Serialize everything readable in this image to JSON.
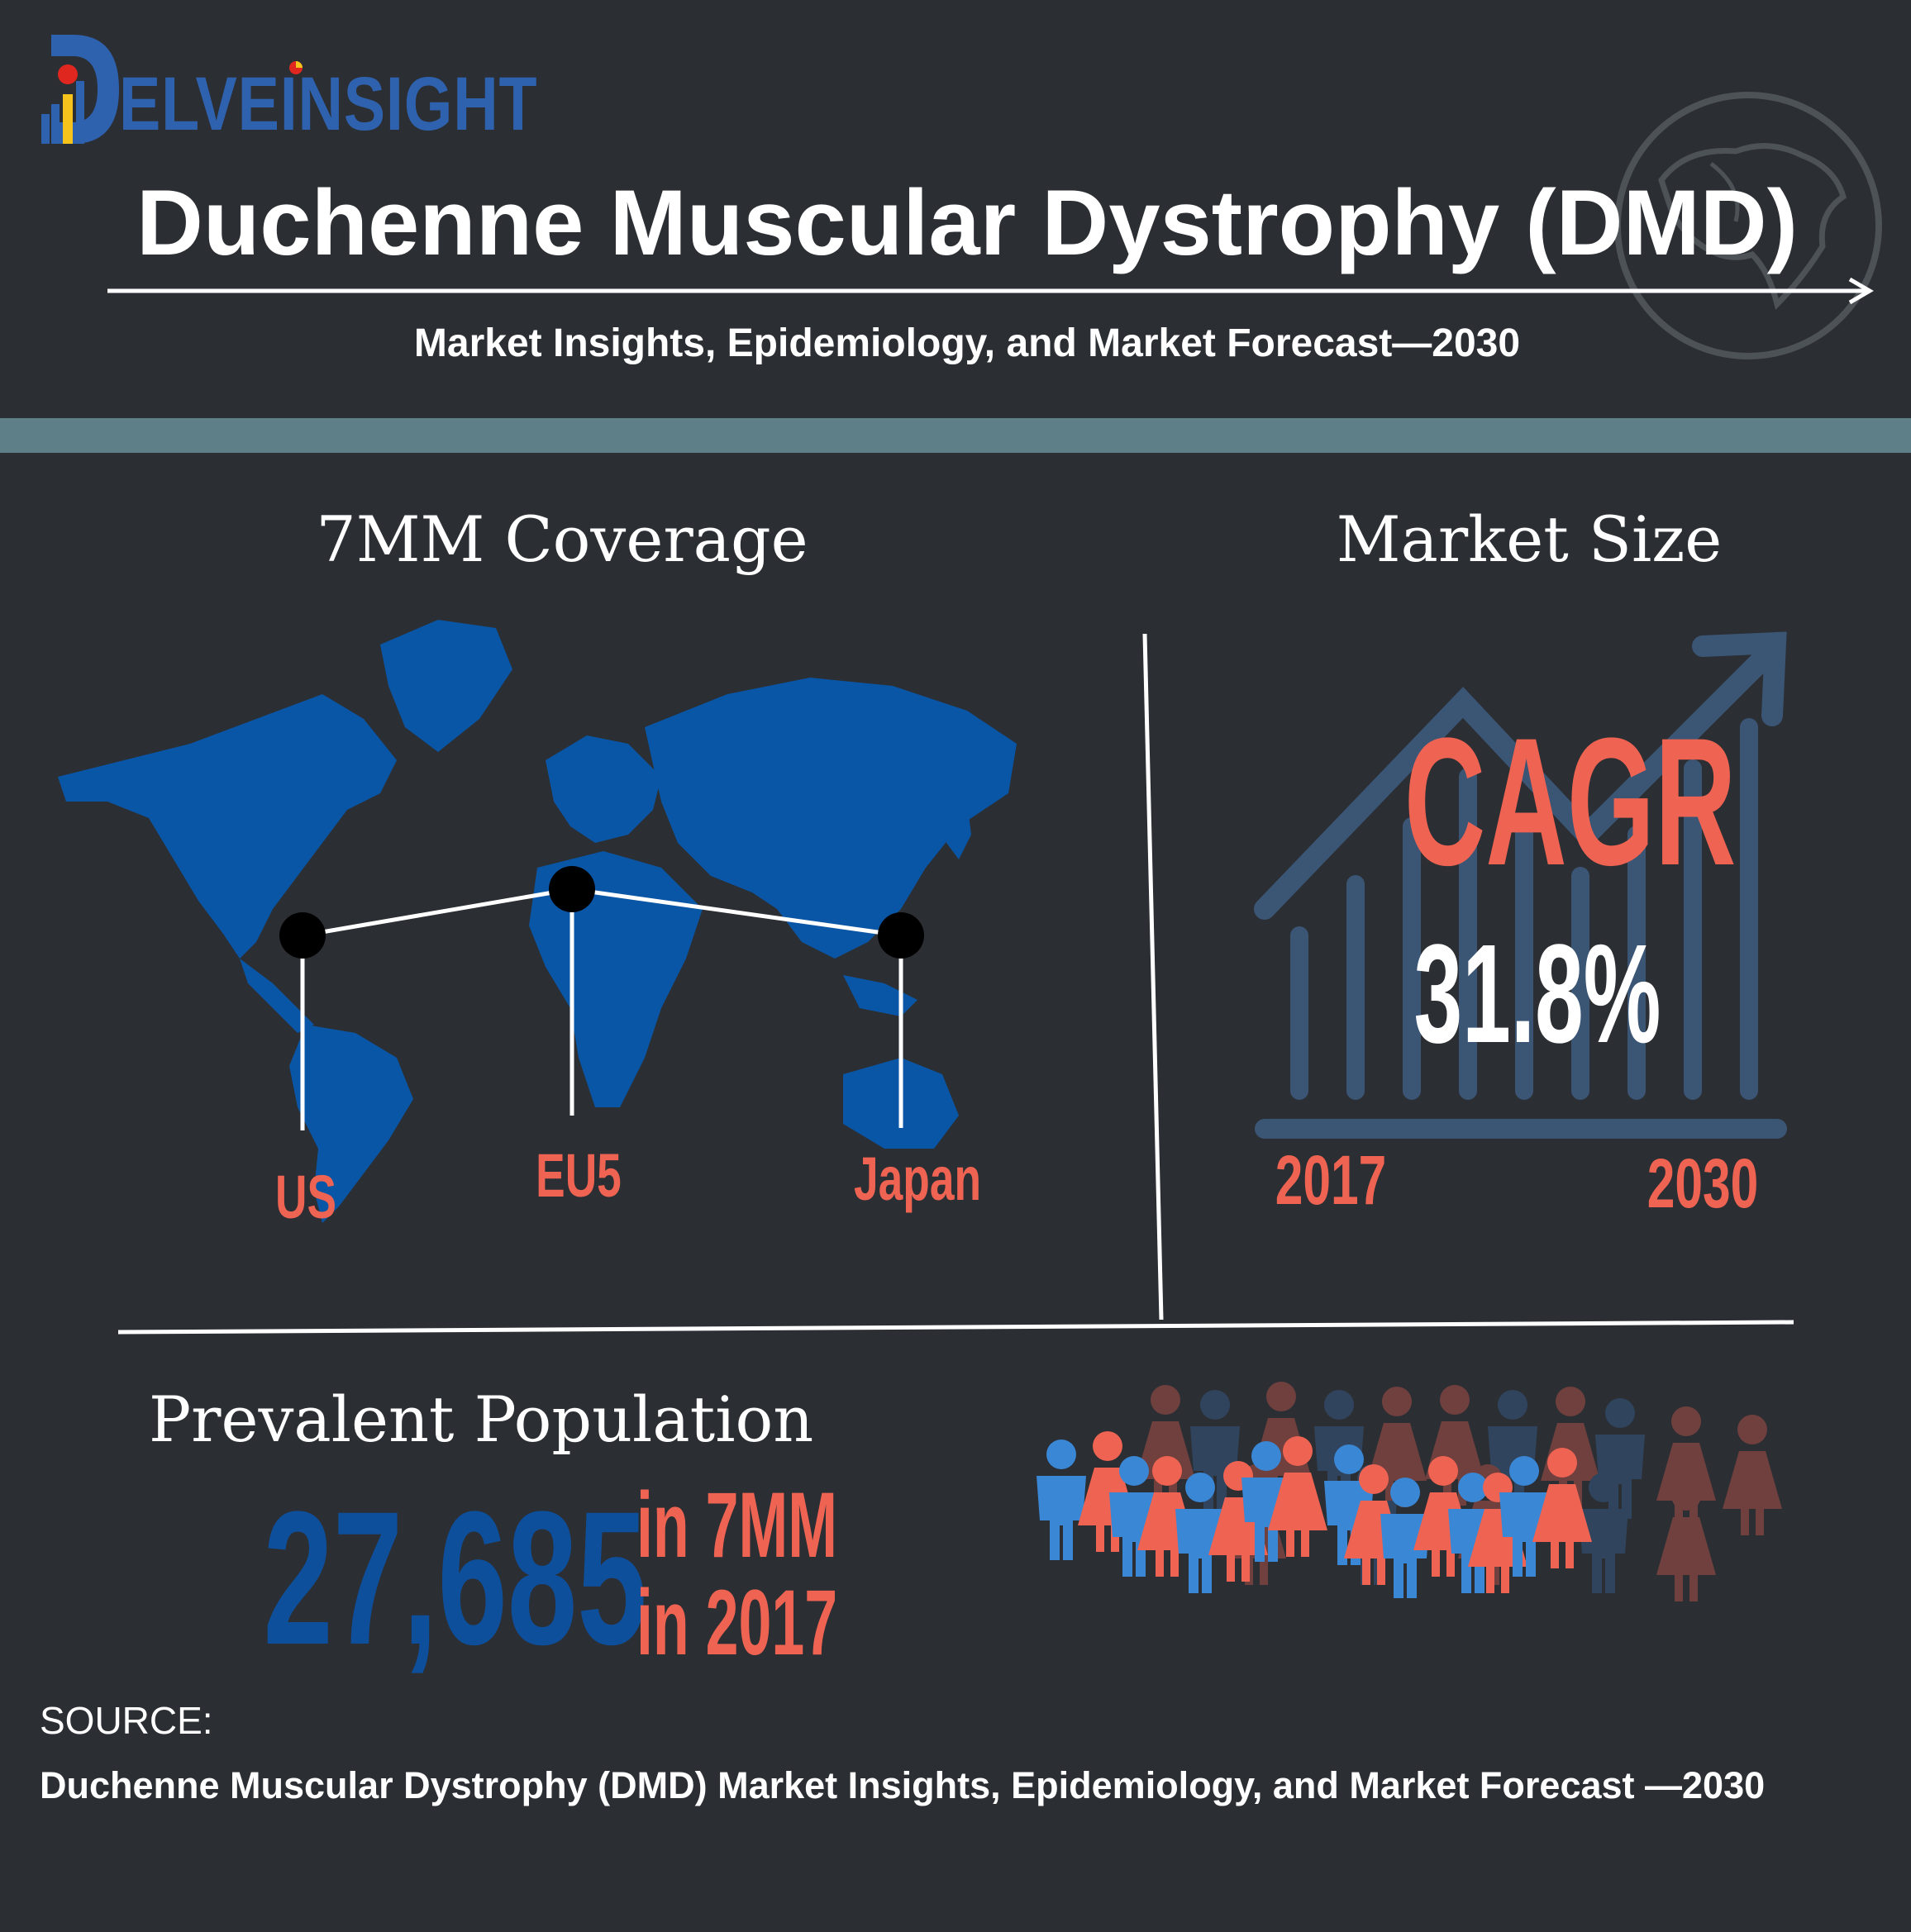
{
  "brand": {
    "logo_text": "ELVEINSIGHT",
    "logo_letter": "D",
    "colors": {
      "blue": "#2f62ae",
      "red": "#e0271f",
      "yellow": "#f6c21c"
    }
  },
  "header": {
    "title": "Duchenne Muscular Dystrophy (DMD)",
    "subtitle": "Market Insights, Epidemiology, and Market Forecast—2030",
    "decoration": "globe-icon"
  },
  "coverage": {
    "heading": "7MM Coverage",
    "regions": [
      "US",
      "EU5",
      "Japan"
    ],
    "map_icon": "world-map-icon",
    "map_color": "#0a56a6"
  },
  "market": {
    "heading": "Market Size",
    "cagr_label": "CAGR",
    "cagr_value": "31.8%",
    "start_year": "2017",
    "end_year": "2030",
    "chart_icon": "growth-chart-icon"
  },
  "population": {
    "heading": "Prevalent Population",
    "value": "27,685",
    "note_line1": "in 7MM",
    "note_line2": "in 2017",
    "crowd_icon": "people-crowd-icon"
  },
  "source": {
    "label": "SOURCE:",
    "text": "Duchenne Muscular Dystrophy (DMD) Market Insights, Epidemiology, and Market Forecast —2030"
  },
  "palette": {
    "background": "#2b2e33",
    "accent_red": "#ee6352",
    "band": "#5e7f87",
    "dark_blue": "#0e4f9c"
  }
}
